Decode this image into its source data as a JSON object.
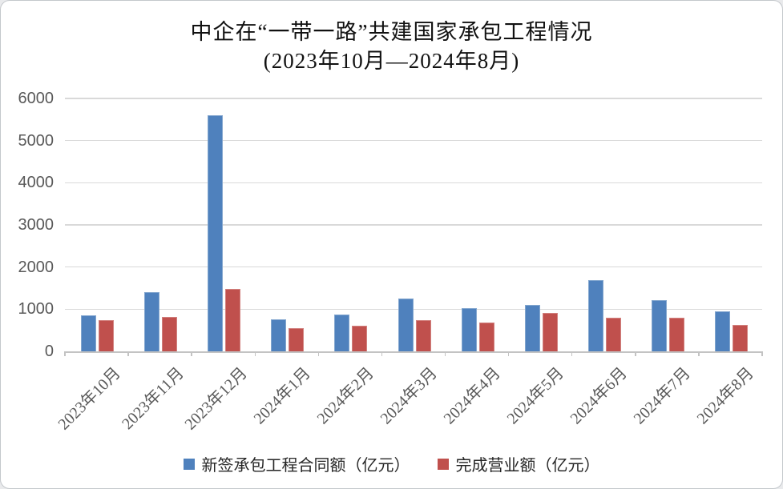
{
  "chart_data": {
    "type": "bar",
    "title": "中企在“一带一路”共建国家承包工程情况",
    "subtitle": "(2023年10月—2024年8月)",
    "categories": [
      "2023年10月",
      "2023年11月",
      "2023年12月",
      "2024年1月",
      "2024年2月",
      "2024年3月",
      "2024年4月",
      "2024年5月",
      "2024年6月",
      "2024年7月",
      "2024年8月"
    ],
    "series": [
      {
        "name": "新签承包工程合同额（亿元）",
        "color": "#4F81BD",
        "border_color": "#84A7CF",
        "values": [
          840,
          1380,
          5590,
          750,
          860,
          1230,
          1000,
          1080,
          1665,
          1190,
          930
        ]
      },
      {
        "name": "完成营业额（亿元）",
        "color": "#C0504D",
        "border_color": "#D2827F",
        "values": [
          730,
          800,
          1455,
          535,
          595,
          730,
          670,
          885,
          770,
          770,
          610
        ]
      }
    ],
    "ylim": [
      0,
      6000
    ],
    "ytick_step": 1000,
    "grid": true,
    "legend_position": "bottom",
    "colors": {
      "gridline": "#d9d9d9",
      "axis": "#c3c3c3",
      "tick_label": "#595959",
      "title_text": "#111111"
    }
  }
}
